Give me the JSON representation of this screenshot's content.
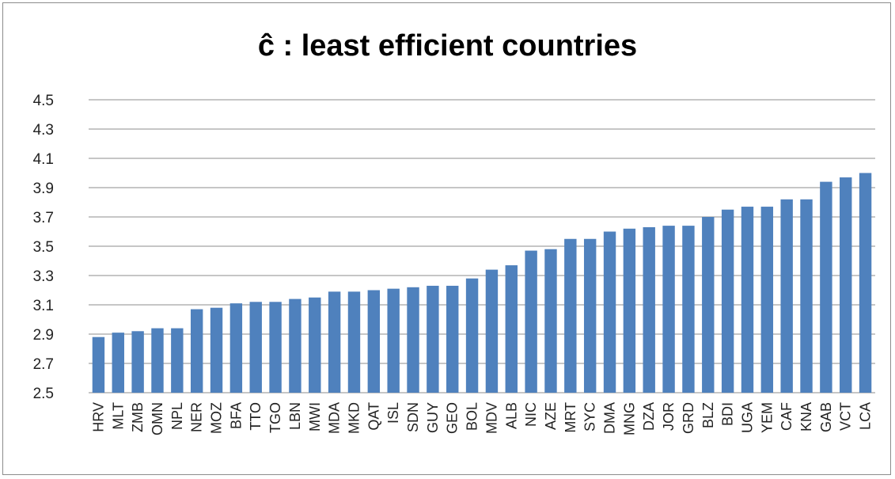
{
  "chart_data": {
    "type": "bar",
    "title": "ĉ :  least efficient countries",
    "xlabel": "",
    "ylabel": "",
    "ylim": [
      2.5,
      4.5
    ],
    "yticks": [
      "2.5",
      "2.7",
      "2.9",
      "3.1",
      "3.3",
      "3.5",
      "3.7",
      "3.9",
      "4.1",
      "4.3",
      "4.5"
    ],
    "grid": true,
    "legend": "none",
    "bar_color": "#4f81bd",
    "categories": [
      "HRV",
      "MLT",
      "ZMB",
      "OMN",
      "NPL",
      "NER",
      "MOZ",
      "BFA",
      "TTO",
      "TGO",
      "LBN",
      "MWI",
      "MDA",
      "MKD",
      "QAT",
      "ISL",
      "SDN",
      "GUY",
      "GEO",
      "BOL",
      "MDV",
      "ALB",
      "NIC",
      "AZE",
      "MRT",
      "SYC",
      "DMA",
      "MNG",
      "DZA",
      "JOR",
      "GRD",
      "BLZ",
      "BDI",
      "UGA",
      "YEM",
      "CAF",
      "KNA",
      "GAB",
      "VCT",
      "LCA"
    ],
    "values": [
      2.88,
      2.91,
      2.92,
      2.94,
      2.94,
      3.07,
      3.08,
      3.11,
      3.12,
      3.12,
      3.14,
      3.15,
      3.19,
      3.19,
      3.2,
      3.21,
      3.22,
      3.23,
      3.23,
      3.28,
      3.34,
      3.37,
      3.47,
      3.48,
      3.55,
      3.55,
      3.6,
      3.62,
      3.63,
      3.64,
      3.64,
      3.7,
      3.75,
      3.77,
      3.77,
      3.82,
      3.82,
      3.94,
      3.97,
      4.0
    ]
  }
}
